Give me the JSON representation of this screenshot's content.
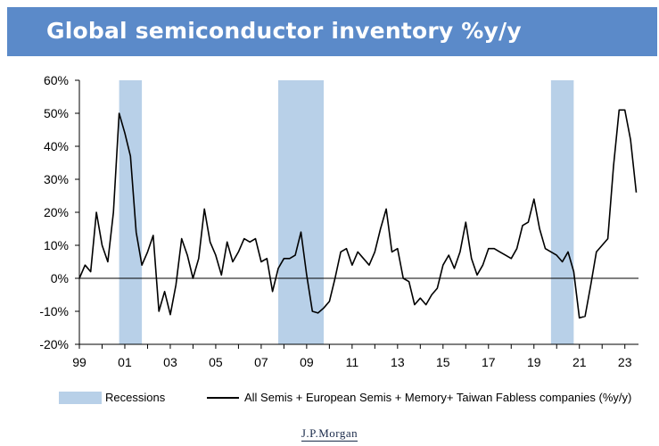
{
  "title": "Global semiconductor inventory %y/y",
  "brand": "J.P.Morgan",
  "colors": {
    "title_bar": "#5b8ac9",
    "recession": "#b8d0e8",
    "line": "#000000"
  },
  "chart_data": {
    "type": "line",
    "title": "Global semiconductor inventory %y/y",
    "xlabel": "",
    "ylabel": "",
    "ylim": [
      -20,
      60
    ],
    "xlim": [
      1999.0,
      2023.6
    ],
    "y_ticks": [
      "60%",
      "50%",
      "40%",
      "30%",
      "20%",
      "10%",
      "0%",
      "-10%",
      "-20%"
    ],
    "y_tick_values": [
      60,
      50,
      40,
      30,
      20,
      10,
      0,
      -10,
      -20
    ],
    "x_ticks": [
      "99",
      "01",
      "03",
      "05",
      "07",
      "09",
      "11",
      "13",
      "15",
      "17",
      "19",
      "21",
      "23"
    ],
    "x_tick_values": [
      1999,
      2001,
      2003,
      2005,
      2007,
      2009,
      2011,
      2013,
      2015,
      2017,
      2019,
      2021,
      2023
    ],
    "grid": false,
    "legend_position": "bottom",
    "recessions": [
      {
        "start": 2000.75,
        "end": 2001.75
      },
      {
        "start": 2007.75,
        "end": 2009.75
      },
      {
        "start": 2019.75,
        "end": 2020.75
      }
    ],
    "series": [
      {
        "name": "All Semis + European Semis + Memory+ Taiwan Fabless companies (%y/y)",
        "x": [
          1999.0,
          1999.25,
          1999.5,
          1999.75,
          2000.0,
          2000.25,
          2000.5,
          2000.75,
          2001.0,
          2001.25,
          2001.5,
          2001.75,
          2002.0,
          2002.25,
          2002.5,
          2002.75,
          2003.0,
          2003.25,
          2003.5,
          2003.75,
          2004.0,
          2004.25,
          2004.5,
          2004.75,
          2005.0,
          2005.25,
          2005.5,
          2005.75,
          2006.0,
          2006.25,
          2006.5,
          2006.75,
          2007.0,
          2007.25,
          2007.5,
          2007.75,
          2008.0,
          2008.25,
          2008.5,
          2008.75,
          2009.0,
          2009.25,
          2009.5,
          2009.75,
          2010.0,
          2010.25,
          2010.5,
          2010.75,
          2011.0,
          2011.25,
          2011.5,
          2011.75,
          2012.0,
          2012.25,
          2012.5,
          2012.75,
          2013.0,
          2013.25,
          2013.5,
          2013.75,
          2014.0,
          2014.25,
          2014.5,
          2014.75,
          2015.0,
          2015.25,
          2015.5,
          2015.75,
          2016.0,
          2016.25,
          2016.5,
          2016.75,
          2017.0,
          2017.25,
          2017.5,
          2017.75,
          2018.0,
          2018.25,
          2018.5,
          2018.75,
          2019.0,
          2019.25,
          2019.5,
          2019.75,
          2020.0,
          2020.25,
          2020.5,
          2020.75,
          2021.0,
          2021.25,
          2021.5,
          2021.75,
          2022.0,
          2022.25,
          2022.5,
          2022.75,
          2023.0,
          2023.25,
          2023.5
        ],
        "values": [
          0,
          4,
          2,
          20,
          10,
          5,
          20,
          50,
          44,
          37,
          14,
          4,
          8,
          13,
          -10,
          -4,
          -11,
          -2,
          12,
          7,
          0,
          6,
          21,
          11,
          7,
          1,
          11,
          5,
          8,
          12,
          11,
          12,
          5,
          6,
          -4,
          3,
          6,
          6,
          7,
          14,
          1,
          -10,
          -10.5,
          -9,
          -7,
          0,
          8,
          9,
          4,
          8,
          6,
          4,
          8,
          15,
          21,
          8,
          9,
          0,
          -1,
          -8,
          -6,
          -8,
          -5,
          -3,
          4,
          7,
          3,
          8,
          17,
          6,
          1,
          4,
          9,
          9,
          8,
          7,
          6,
          9,
          16,
          17,
          24,
          15,
          9,
          8,
          7,
          5,
          8,
          2,
          -12,
          -11.5,
          -2,
          8,
          10,
          12,
          34,
          51,
          51,
          42,
          26
        ]
      }
    ]
  },
  "legend": {
    "recessions_label": "Recessions",
    "series_label": "All Semis + European Semis + Memory+ Taiwan Fabless companies (%y/y)"
  }
}
